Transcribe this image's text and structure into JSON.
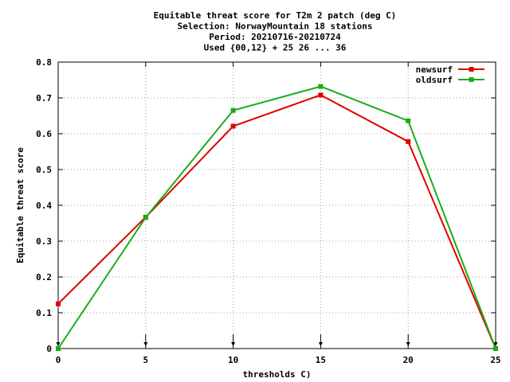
{
  "chart_data": {
    "type": "line",
    "title_lines": [
      "Equitable threat score  for T2m 2 patch (deg C)",
      "Selection: NorwayMountain     18 stations",
      "Period: 20210716-20210724",
      "Used {00,12} + 25 26 ... 36"
    ],
    "xlabel": "thresholds C)",
    "ylabel": "Equitable threat score",
    "xlim": [
      0,
      25
    ],
    "ylim": [
      0,
      0.8
    ],
    "x_ticks": [
      "0",
      "5",
      "10",
      "15",
      "20",
      "25"
    ],
    "y_ticks": [
      "0",
      "0.1",
      "0.2",
      "0.3",
      "0.4",
      "0.5",
      "0.6",
      "0.7",
      "0.8"
    ],
    "grid": true,
    "legend_position": "top-right",
    "x": [
      0,
      5,
      10,
      15,
      20,
      25
    ],
    "series": [
      {
        "name": "newsurf",
        "color": "#e00000",
        "values": [
          0.125,
          0.367,
          0.621,
          0.708,
          0.578,
          0.0
        ]
      },
      {
        "name": "oldsurf",
        "color": "#1aac1a",
        "values": [
          0.0,
          0.366,
          0.665,
          0.732,
          0.636,
          0.0
        ]
      }
    ],
    "sample_markers_x": [
      0,
      5,
      10,
      15,
      20,
      25
    ]
  }
}
